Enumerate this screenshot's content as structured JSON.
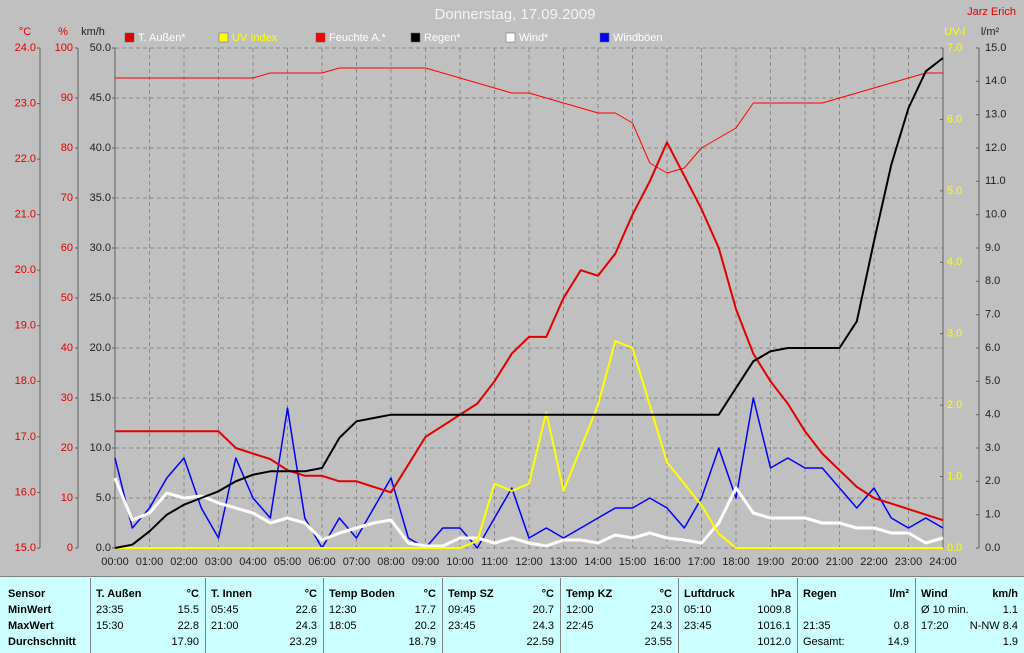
{
  "chart_data": {
    "type": "line",
    "title": "Donnerstag, 17.09.2009",
    "author": "Jarz Erich",
    "xlim": [
      0,
      24
    ],
    "xticks": [
      {
        "value": 0,
        "label": "00:00"
      },
      {
        "value": 1,
        "label": "01:00"
      },
      {
        "value": 2,
        "label": "02:00"
      },
      {
        "value": 3,
        "label": "03:00"
      },
      {
        "value": 4,
        "label": "04:00"
      },
      {
        "value": 5,
        "label": "05:00"
      },
      {
        "value": 6,
        "label": "06:00"
      },
      {
        "value": 7,
        "label": "07:00"
      },
      {
        "value": 8,
        "label": "08:00"
      },
      {
        "value": 9,
        "label": "09:00"
      },
      {
        "value": 10,
        "label": "10:00"
      },
      {
        "value": 11,
        "label": "11:00"
      },
      {
        "value": 12,
        "label": "12:00"
      },
      {
        "value": 13,
        "label": "13:00"
      },
      {
        "value": 14,
        "label": "14:00"
      },
      {
        "value": 15,
        "label": "15:00"
      },
      {
        "value": 16,
        "label": "16:00"
      },
      {
        "value": 17,
        "label": "17:00"
      },
      {
        "value": 18,
        "label": "18:00"
      },
      {
        "value": 19,
        "label": "19:00"
      },
      {
        "value": 20,
        "label": "20:00"
      },
      {
        "value": 21,
        "label": "21:00"
      },
      {
        "value": 22,
        "label": "22:00"
      },
      {
        "value": 23,
        "label": "23:00"
      },
      {
        "value": 24,
        "label": "24:00"
      }
    ],
    "grid": true,
    "axes": [
      {
        "label": "°C",
        "color": "#e00000",
        "lim": [
          15,
          24
        ],
        "ticks": [
          {
            "value": 24,
            "label": "24.0"
          },
          {
            "value": 23,
            "label": "23.0"
          },
          {
            "value": 22,
            "label": "22.0"
          },
          {
            "value": 21,
            "label": "21.0"
          },
          {
            "value": 20,
            "label": "20.0"
          },
          {
            "value": 19,
            "label": "19.0"
          },
          {
            "value": 18,
            "label": "18.0"
          },
          {
            "value": 17,
            "label": "17.0"
          },
          {
            "value": 16,
            "label": "16.0"
          },
          {
            "value": 15,
            "label": "15.0"
          }
        ]
      },
      {
        "label": "%",
        "color": "#e00000",
        "lim": [
          0,
          100
        ],
        "ticks": [
          100,
          90,
          80,
          70,
          60,
          50,
          40,
          30,
          20,
          10,
          0
        ]
      },
      {
        "label": "km/h",
        "color": "#202020",
        "lim": [
          0,
          50
        ],
        "ticks": [
          {
            "value": 50,
            "label": "50.0"
          },
          {
            "value": 45,
            "label": "45.0"
          },
          {
            "value": 40,
            "label": "40.0"
          },
          {
            "value": 35,
            "label": "35.0"
          },
          {
            "value": 30,
            "label": "30.0"
          },
          {
            "value": 25,
            "label": "25.0"
          },
          {
            "value": 20,
            "label": "20.0"
          },
          {
            "value": 15,
            "label": "15.0"
          },
          {
            "value": 10,
            "label": "10.0"
          },
          {
            "value": 5,
            "label": "5.0"
          },
          {
            "value": 0,
            "label": "0.0"
          }
        ]
      },
      {
        "label": "UV-I",
        "color": "#ffff00",
        "lim": [
          0,
          7
        ],
        "ticks": [
          {
            "value": 7,
            "label": "7.0"
          },
          {
            "value": 6,
            "label": "6.0"
          },
          {
            "value": 5,
            "label": "5.0"
          },
          {
            "value": 4,
            "label": "4.0"
          },
          {
            "value": 3,
            "label": "3.0"
          },
          {
            "value": 2,
            "label": "2.0"
          },
          {
            "value": 1,
            "label": "1.0"
          },
          {
            "value": 0,
            "label": "0.0"
          }
        ]
      },
      {
        "label": "l/m²",
        "color": "#202020",
        "lim": [
          0,
          15
        ],
        "ticks": [
          {
            "value": 15,
            "label": "15.0"
          },
          {
            "value": 14,
            "label": "14.0"
          },
          {
            "value": 13,
            "label": "13.0"
          },
          {
            "value": 12,
            "label": "12.0"
          },
          {
            "value": 11,
            "label": "11.0"
          },
          {
            "value": 10,
            "label": "10.0"
          },
          {
            "value": 9,
            "label": "9.0"
          },
          {
            "value": 8,
            "label": "8.0"
          },
          {
            "value": 7,
            "label": "7.0"
          },
          {
            "value": 6,
            "label": "6.0"
          },
          {
            "value": 5,
            "label": "5.0"
          },
          {
            "value": 4,
            "label": "4.0"
          },
          {
            "value": 3,
            "label": "3.0"
          },
          {
            "value": 2,
            "label": "2.0"
          },
          {
            "value": 1,
            "label": "1.0"
          },
          {
            "value": 0,
            "label": "0.0"
          }
        ]
      }
    ],
    "x": [
      0,
      0.5,
      1,
      1.5,
      2,
      2.5,
      3,
      3.5,
      4,
      4.5,
      5,
      5.5,
      6,
      6.5,
      7,
      7.5,
      8,
      8.5,
      9,
      9.5,
      10,
      10.5,
      11,
      11.5,
      12,
      12.5,
      13,
      13.5,
      14,
      14.5,
      15,
      15.5,
      16,
      16.5,
      17,
      17.5,
      18,
      18.5,
      19,
      19.5,
      20,
      20.5,
      21,
      21.5,
      22,
      22.5,
      23,
      23.5,
      24
    ],
    "series": [
      {
        "name": "T. Außen*",
        "color": "#e00000",
        "axis": 0,
        "values": [
          17.1,
          17.1,
          17.1,
          17.1,
          17.1,
          17.1,
          17.1,
          16.8,
          16.7,
          16.6,
          16.4,
          16.3,
          16.3,
          16.2,
          16.2,
          16.1,
          16.0,
          16.5,
          17.0,
          17.2,
          17.4,
          17.6,
          18.0,
          18.5,
          18.8,
          18.8,
          19.5,
          20.0,
          19.9,
          20.3,
          21.0,
          21.6,
          22.3,
          21.7,
          21.1,
          20.4,
          19.3,
          18.5,
          18.0,
          17.6,
          17.1,
          16.7,
          16.4,
          16.1,
          15.9,
          15.8,
          15.7,
          15.6,
          15.5
        ]
      },
      {
        "name": "UV Index",
        "color": "#ffff00",
        "axis": 3,
        "values": [
          0,
          0,
          0,
          0,
          0,
          0,
          0,
          0,
          0,
          0,
          0,
          0,
          0,
          0,
          0,
          0,
          0,
          0,
          0,
          0,
          0,
          0.1,
          0.9,
          0.8,
          0.9,
          1.9,
          0.8,
          1.4,
          2.0,
          2.9,
          2.8,
          2.0,
          1.2,
          0.9,
          0.6,
          0.2,
          0,
          0,
          0,
          0,
          0,
          0,
          0,
          0,
          0,
          0,
          0,
          0,
          0
        ]
      },
      {
        "name": "Feuchte A.*",
        "color": "#ff0000",
        "axis": 1,
        "values": [
          94,
          94,
          94,
          94,
          94,
          94,
          94,
          94,
          94,
          95,
          95,
          95,
          95,
          96,
          96,
          96,
          96,
          96,
          96,
          95,
          94,
          93,
          92,
          91,
          91,
          90,
          89,
          88,
          87,
          87,
          85,
          77,
          75,
          76,
          80,
          82,
          84,
          89,
          89,
          89,
          89,
          89,
          90,
          91,
          92,
          93,
          94,
          95,
          95
        ]
      },
      {
        "name": "Regen*",
        "color": "#000000",
        "axis": 4,
        "values": [
          0,
          0.1,
          0.5,
          1.0,
          1.3,
          1.5,
          1.7,
          2.0,
          2.2,
          2.3,
          2.3,
          2.3,
          2.4,
          3.3,
          3.8,
          3.9,
          4.0,
          4.0,
          4.0,
          4.0,
          4.0,
          4.0,
          4.0,
          4.0,
          4.0,
          4.0,
          4.0,
          4.0,
          4.0,
          4.0,
          4.0,
          4.0,
          4.0,
          4.0,
          4.0,
          4.0,
          4.8,
          5.6,
          5.9,
          6.0,
          6.0,
          6.0,
          6.0,
          6.8,
          9.2,
          11.5,
          13.2,
          14.3,
          14.7
        ]
      },
      {
        "name": "Wind*",
        "color": "#ffffff",
        "axis": 2,
        "values": [
          7,
          2.8,
          3.5,
          5.5,
          5.0,
          5.2,
          4.5,
          4.0,
          3.5,
          2.5,
          3.0,
          2.5,
          0.8,
          1.5,
          2.0,
          2.5,
          2.8,
          0.5,
          0.2,
          0.2,
          1.0,
          1.0,
          0.5,
          1.0,
          0.5,
          0.2,
          0.8,
          0.8,
          0.5,
          1.3,
          1.0,
          1.5,
          1.0,
          0.8,
          0.5,
          2.5,
          6.0,
          3.5,
          3.0,
          3.0,
          3.0,
          2.5,
          2.5,
          2.0,
          2.0,
          1.5,
          1.5,
          0.5,
          1.0
        ]
      },
      {
        "name": "Windböen",
        "color": "#0000ff",
        "axis": 2,
        "values": [
          9,
          2,
          4,
          7,
          9,
          4,
          1,
          9,
          5,
          3,
          14,
          3,
          0,
          3,
          1,
          4,
          7,
          1,
          0,
          2,
          2,
          0,
          3,
          6,
          1,
          2,
          1,
          2,
          3,
          4,
          4,
          5,
          4,
          2,
          5,
          10,
          5,
          15,
          8,
          9,
          8,
          8,
          6,
          4,
          6,
          3,
          2,
          3,
          2
        ]
      }
    ]
  },
  "table": {
    "row_labels": [
      "Sensor",
      "MinWert",
      "MaxWert",
      "Durchschnitt"
    ],
    "columns": [
      {
        "name": "T. Außen",
        "unit": "°C",
        "min": {
          "label": "23:35",
          "value": "15.5"
        },
        "max": {
          "label": "15:30",
          "value": "22.8"
        },
        "avg": {
          "value": "17.90"
        }
      },
      {
        "name": "T. Innen",
        "unit": "°C",
        "min": {
          "label": "05:45",
          "value": "22.6"
        },
        "max": {
          "label": "21:00",
          "value": "24.3"
        },
        "avg": {
          "value": "23.29"
        }
      },
      {
        "name": "Temp Boden",
        "unit": "°C",
        "min": {
          "label": "12:30",
          "value": "17.7"
        },
        "max": {
          "label": "18:05",
          "value": "20.2"
        },
        "avg": {
          "value": "18.79"
        }
      },
      {
        "name": "Temp SZ",
        "unit": "°C",
        "min": {
          "label": "09:45",
          "value": "20.7"
        },
        "max": {
          "label": "23:45",
          "value": "24.3"
        },
        "avg": {
          "value": "22.59"
        }
      },
      {
        "name": "Temp KZ",
        "unit": "°C",
        "min": {
          "label": "12:00",
          "value": "23.0"
        },
        "max": {
          "label": "22:45",
          "value": "24.3"
        },
        "avg": {
          "value": "23.55"
        }
      },
      {
        "name": "Luftdruck",
        "unit": "hPa",
        "min": {
          "label": "05:10",
          "value": "1009.8"
        },
        "max": {
          "label": "23:45",
          "value": "1016.1"
        },
        "avg": {
          "value": "1012.0"
        }
      },
      {
        "name": "Regen",
        "unit": "l/m²",
        "max": {
          "label": "21:35",
          "value": "0.8"
        },
        "avg": {
          "label": "Gesamt:",
          "value": "14.9"
        }
      },
      {
        "name": "Wind",
        "unit": "km/h",
        "min": {
          "label": "Ø 10 min.",
          "value": "1.1"
        },
        "max": {
          "label": "17:20",
          "value": "N-NW 8.4"
        },
        "avg": {
          "value": "1.9"
        }
      }
    ]
  }
}
